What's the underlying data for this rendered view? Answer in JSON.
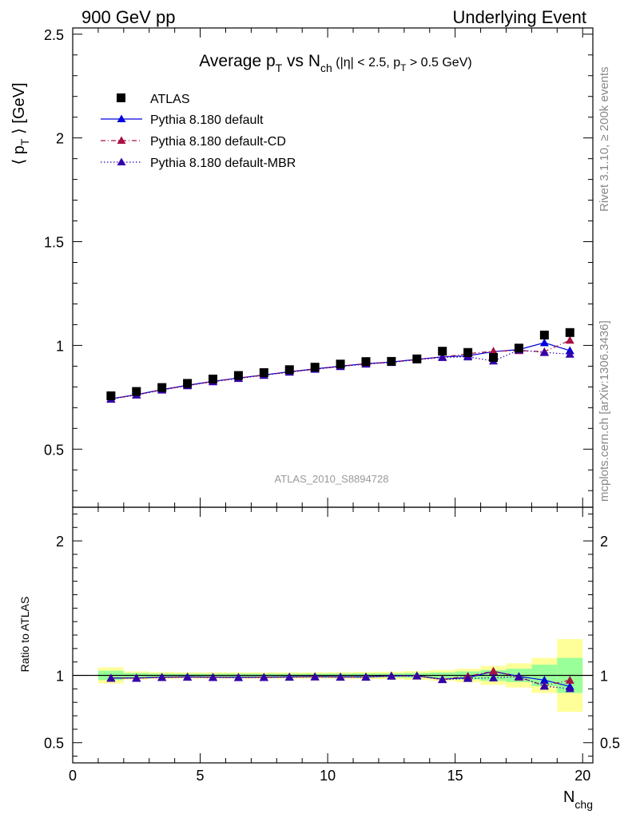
{
  "header": {
    "left": "900 GeV pp",
    "right": "Underlying Event"
  },
  "side_labels": {
    "rivet": "Rivet 3.1.10, ≥ 200k events",
    "mcplots": "mcplots.cern.ch [arXiv:1306.3436]"
  },
  "chart_data": {
    "type": "scatter",
    "title": {
      "main": "Average p",
      "sub_t": "T",
      "vs": " vs N",
      "sub_ch": "ch",
      "cuts_a": " (|η| < 2.5, p",
      "cuts_sub": "T",
      "cuts_b": " > 0.5 GeV)"
    },
    "analysis_id": "ATLAS_2010_S8894728",
    "ylabel": {
      "pre": "⟨ p",
      "sub": "T",
      "post": " ⟩ [GeV]"
    },
    "xlabel": {
      "main": "N",
      "sub": "chg"
    },
    "xlim": [
      0,
      20.4
    ],
    "ylim": [
      0.22,
      2.53
    ],
    "ratio_ylim": [
      0.35,
      2.25
    ],
    "ratio_ylabel": "Ratio to ATLAS",
    "x_ticks": [
      "0",
      "5",
      "10",
      "15",
      "20"
    ],
    "y_ticks": [
      "0.5",
      "1",
      "1.5",
      "2",
      "2.5"
    ],
    "ratio_y_ticks": [
      "0.5",
      "1",
      "2"
    ],
    "x": [
      1.5,
      2.5,
      3.5,
      4.5,
      5.5,
      6.5,
      7.5,
      8.5,
      9.5,
      10.5,
      11.5,
      12.5,
      13.5,
      14.5,
      15.5,
      16.5,
      17.5,
      18.5,
      19.5
    ],
    "data": {
      "name": "ATLAS",
      "values": [
        0.757,
        0.778,
        0.797,
        0.817,
        0.838,
        0.855,
        0.869,
        0.883,
        0.895,
        0.91,
        0.922,
        0.923,
        0.935,
        0.972,
        0.966,
        0.942,
        0.987,
        1.05,
        1.062
      ],
      "band_green": [
        0.035,
        0.018,
        0.014,
        0.013,
        0.013,
        0.013,
        0.013,
        0.013,
        0.013,
        0.014,
        0.015,
        0.016,
        0.018,
        0.022,
        0.03,
        0.04,
        0.05,
        0.08,
        0.13
      ],
      "band_yellow": [
        0.06,
        0.03,
        0.025,
        0.023,
        0.023,
        0.023,
        0.023,
        0.023,
        0.023,
        0.024,
        0.026,
        0.028,
        0.032,
        0.04,
        0.05,
        0.07,
        0.09,
        0.13,
        0.27
      ]
    },
    "series": [
      {
        "name": "Pythia 8.180 default",
        "color": "#0000dd",
        "dash": "solid",
        "values": [
          0.743,
          0.763,
          0.787,
          0.808,
          0.827,
          0.843,
          0.858,
          0.873,
          0.887,
          0.9,
          0.912,
          0.92,
          0.933,
          0.945,
          0.95,
          0.97,
          0.98,
          1.013,
          0.975
        ],
        "ratio": [
          0.981,
          0.981,
          0.987,
          0.989,
          0.987,
          0.986,
          0.987,
          0.989,
          0.991,
          0.989,
          0.989,
          0.997,
          0.998,
          0.972,
          0.983,
          1.03,
          0.993,
          0.965,
          0.918
        ]
      },
      {
        "name": "Pythia 8.180 default-CD",
        "color": "#aa1144",
        "dash": "6,3,1,3",
        "values": [
          0.742,
          0.762,
          0.786,
          0.807,
          0.826,
          0.842,
          0.857,
          0.872,
          0.886,
          0.899,
          0.911,
          0.919,
          0.932,
          0.944,
          0.96,
          0.972,
          0.975,
          0.97,
          1.025
        ],
        "ratio": [
          0.98,
          0.98,
          0.986,
          0.988,
          0.986,
          0.985,
          0.986,
          0.988,
          0.99,
          0.988,
          0.988,
          0.996,
          0.997,
          0.971,
          0.994,
          1.032,
          0.988,
          0.924,
          0.965
        ]
      },
      {
        "name": "Pythia 8.180 default-MBR",
        "color": "#3300aa",
        "dash": "1.5,2.5",
        "values": [
          0.741,
          0.761,
          0.785,
          0.806,
          0.825,
          0.841,
          0.856,
          0.871,
          0.885,
          0.898,
          0.91,
          0.918,
          0.931,
          0.942,
          0.945,
          0.925,
          0.978,
          0.966,
          0.958
        ],
        "ratio": [
          0.979,
          0.979,
          0.985,
          0.987,
          0.985,
          0.984,
          0.985,
          0.987,
          0.989,
          0.987,
          0.987,
          0.995,
          0.996,
          0.969,
          0.978,
          0.982,
          0.991,
          0.92,
          0.902
        ]
      }
    ]
  }
}
